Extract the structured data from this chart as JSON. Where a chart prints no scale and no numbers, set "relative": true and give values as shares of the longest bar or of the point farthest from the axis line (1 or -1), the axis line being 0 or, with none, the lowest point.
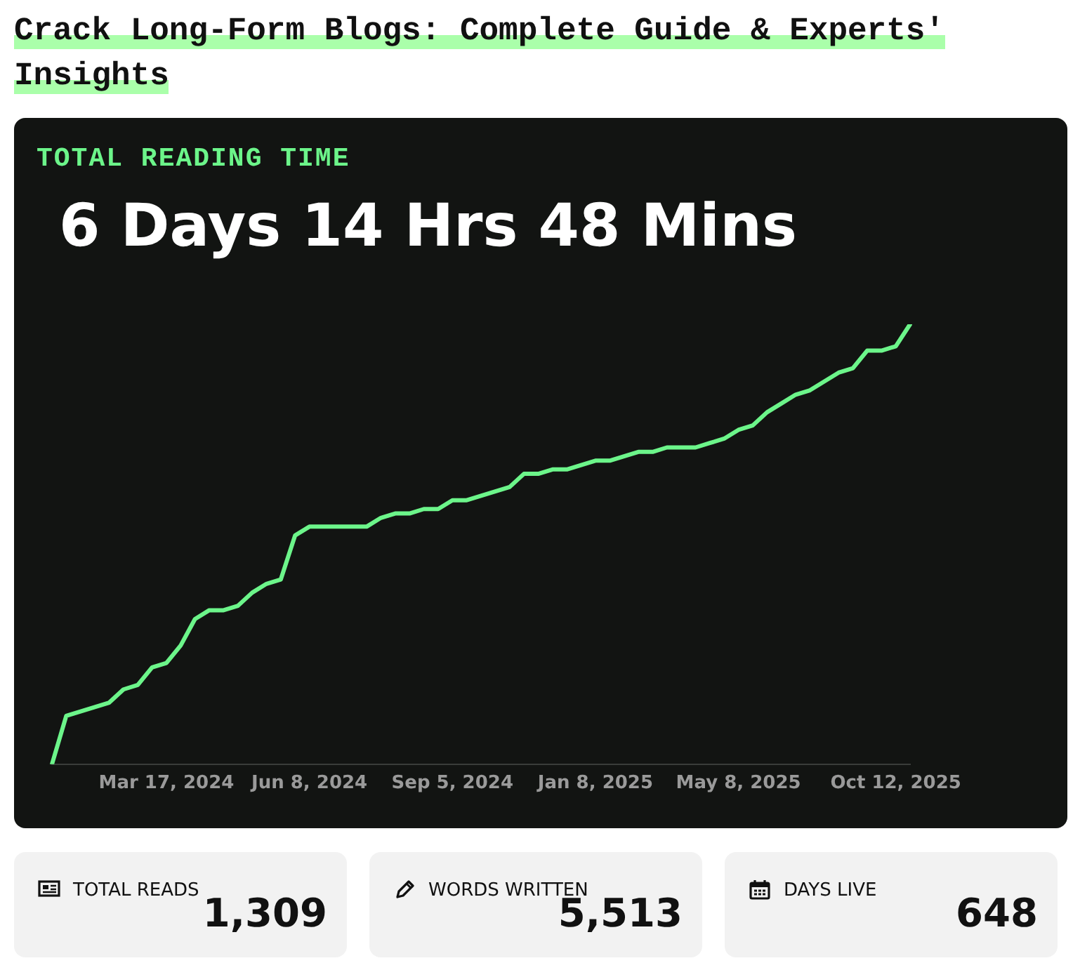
{
  "chart_data": [
    {
      "type": "line",
      "title": "Crack Long-Form Blogs: Complete Guide & Experts' Insights",
      "subtitle": "TOTAL READING TIME",
      "annotations": [
        "6 Days 14 Hrs 48 Mins"
      ],
      "relative": true,
      "color": "#6cf58a",
      "categories": [
        null,
        null,
        null,
        null,
        null,
        null,
        null,
        null,
        "Mar 17, 2024",
        null,
        null,
        null,
        null,
        null,
        null,
        null,
        null,
        null,
        "Jun 8, 2024",
        null,
        null,
        null,
        null,
        null,
        null,
        null,
        null,
        null,
        "Sep 5, 2024",
        null,
        null,
        null,
        null,
        null,
        null,
        null,
        null,
        null,
        "Jan 8, 2025",
        null,
        null,
        null,
        null,
        null,
        null,
        null,
        null,
        null,
        "May 8, 2025",
        null,
        null,
        null,
        null,
        null,
        null,
        null,
        null,
        null,
        null,
        "Oct 12, 2025",
        null
      ],
      "values": [
        0,
        0.11,
        0.12,
        0.13,
        0.14,
        0.17,
        0.18,
        0.22,
        0.23,
        0.27,
        0.33,
        0.35,
        0.35,
        0.36,
        0.39,
        0.41,
        0.42,
        0.52,
        0.54,
        0.54,
        0.54,
        0.54,
        0.54,
        0.56,
        0.57,
        0.57,
        0.58,
        0.58,
        0.6,
        0.6,
        0.61,
        0.62,
        0.63,
        0.66,
        0.66,
        0.67,
        0.67,
        0.68,
        0.69,
        0.69,
        0.7,
        0.71,
        0.71,
        0.72,
        0.72,
        0.72,
        0.73,
        0.74,
        0.76,
        0.77,
        0.8,
        0.82,
        0.84,
        0.85,
        0.87,
        0.89,
        0.9,
        0.94,
        0.94,
        0.95,
        1
      ]
    },
    {
      "type": "other",
      "title": "TOTAL READS",
      "annotations": [
        "1,309"
      ]
    },
    {
      "type": "other",
      "title": "WORDS WRITTEN",
      "annotations": [
        "5,513"
      ]
    },
    {
      "type": "other",
      "title": "DAYS LIVE",
      "annotations": [
        "648"
      ]
    }
  ]
}
